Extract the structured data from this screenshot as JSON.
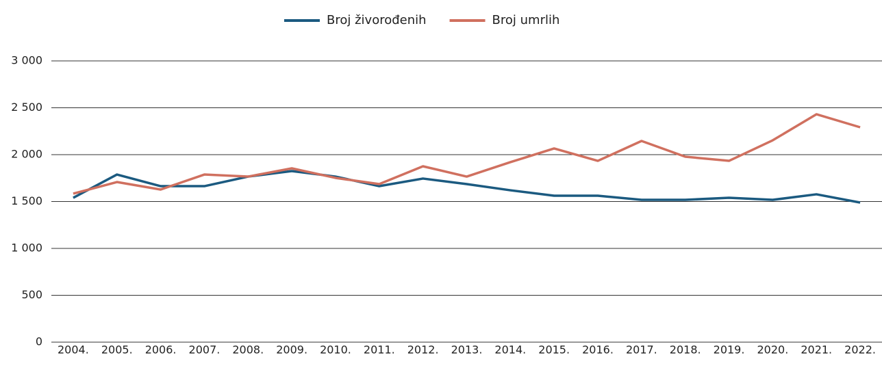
{
  "chart_data": {
    "type": "line",
    "categories": [
      "2004.",
      "2005.",
      "2006.",
      "2007.",
      "2008.",
      "2009.",
      "2010.",
      "2011.",
      "2012.",
      "2013.",
      "2014.",
      "2015.",
      "2016.",
      "2017.",
      "2018.",
      "2019.",
      "2020.",
      "2021.",
      "2022."
    ],
    "series": [
      {
        "name": "Broj živorođenih",
        "color": "#1b5a80",
        "values": [
          1540,
          1788,
          1664,
          1664,
          1766,
          1825,
          1766,
          1664,
          1745,
          1686,
          1620,
          1562,
          1562,
          1518,
          1518,
          1540,
          1518,
          1577,
          1489
        ]
      },
      {
        "name": "Broj umrlih",
        "color": "#d0705f",
        "values": [
          1584,
          1708,
          1628,
          1788,
          1766,
          1854,
          1752,
          1686,
          1876,
          1766,
          1920,
          2066,
          1934,
          2146,
          1978,
          1934,
          2153,
          2431,
          2292
        ]
      }
    ],
    "ylim": [
      0,
      3000
    ],
    "yticks": [
      0,
      500,
      {
        "value": 1000,
        "label": "1 000"
      },
      {
        "value": 1500,
        "label": "1 500"
      },
      {
        "value": 2000,
        "label": "2 000"
      },
      {
        "value": 2500,
        "label": "2 500"
      },
      {
        "value": 3000,
        "label": "3 000"
      }
    ],
    "grid": true,
    "legend": "top"
  }
}
